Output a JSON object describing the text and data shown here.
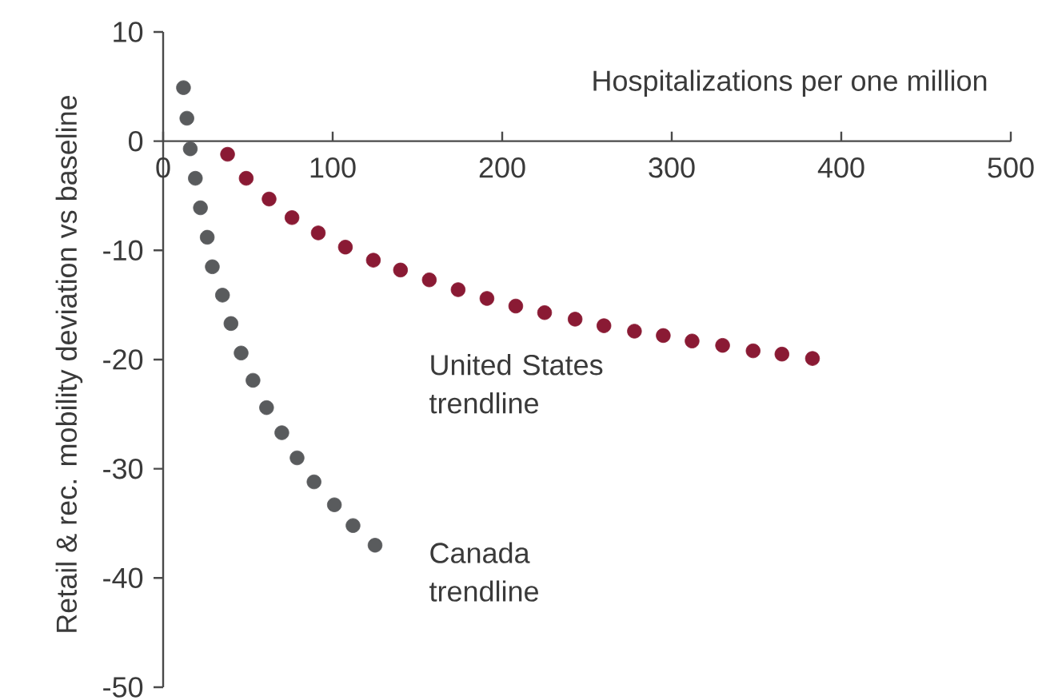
{
  "chart_data": {
    "type": "scatter",
    "xlabel": "Hospitalizations per one million",
    "ylabel": "Retail & rec. mobility deviation vs baseline",
    "xlim": [
      0,
      500
    ],
    "ylim": [
      -50,
      10
    ],
    "xticks": [
      0,
      100,
      200,
      300,
      400,
      500
    ],
    "yticks": [
      -50,
      -40,
      -30,
      -20,
      -10,
      0,
      10
    ],
    "grid": false,
    "series": [
      {
        "color": "#8a1a34",
        "x": [
          38,
          49,
          62.5,
          76,
          91.5,
          107.5,
          124,
          140,
          157,
          174,
          191,
          208,
          225,
          243,
          260,
          278,
          295,
          312,
          330,
          348,
          365,
          383
        ],
        "values": [
          -1.2,
          -3.4,
          -5.3,
          -7.0,
          -8.4,
          -9.7,
          -10.9,
          -11.8,
          -12.7,
          -13.6,
          -14.4,
          -15.1,
          -15.7,
          -16.3,
          -16.9,
          -17.4,
          -17.8,
          -18.3,
          -18.7,
          -19.2,
          -19.5,
          -19.9
        ]
      },
      {
        "color": "#595b5d",
        "x": [
          12,
          14,
          16,
          19,
          22,
          26,
          29,
          35,
          40,
          46,
          53,
          61,
          70,
          79,
          89,
          101,
          112,
          125
        ],
        "values": [
          4.9,
          2.1,
          -0.7,
          -3.4,
          -6.1,
          -8.8,
          -11.5,
          -14.1,
          -16.7,
          -19.4,
          -21.9,
          -24.4,
          -26.7,
          -29.0,
          -31.2,
          -33.3,
          -35.2,
          -37.0
        ]
      }
    ],
    "annotations": [
      "United States trendline",
      "Canada trendline"
    ]
  }
}
